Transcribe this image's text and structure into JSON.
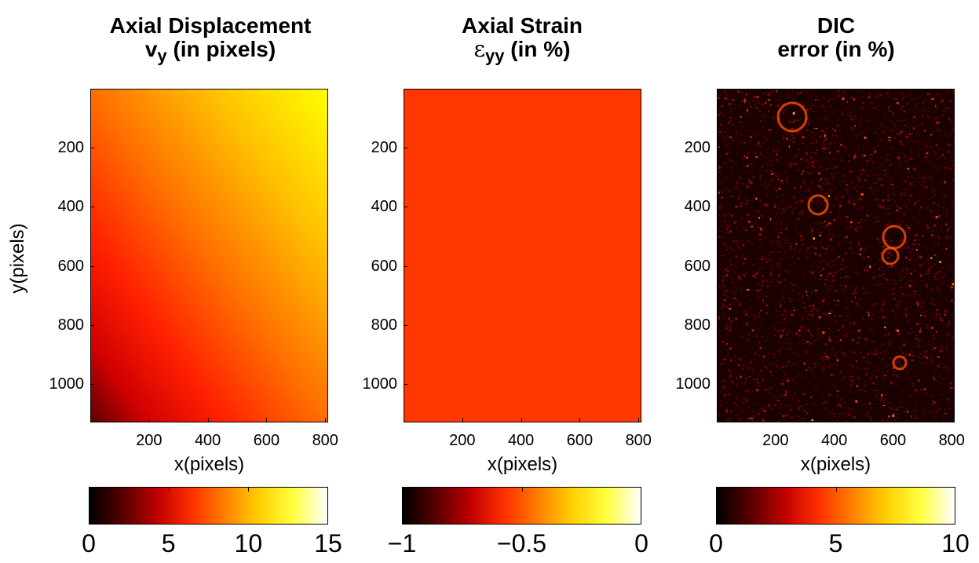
{
  "chart_data": [
    {
      "type": "heatmap",
      "title_line1": "Axial Displacement",
      "title_sym": "v",
      "title_sub": "y",
      "title_rest": " (in pixels)",
      "xlabel": "x(pixels)",
      "ylabel": "y(pixels)",
      "xticks": [
        "200",
        "400",
        "600",
        "800"
      ],
      "yticks": [
        "200",
        "400",
        "600",
        "800",
        "1000"
      ],
      "xlim": [
        0,
        810
      ],
      "ylim": [
        0,
        1130
      ],
      "colormap": "hot",
      "clim": [
        0,
        15
      ],
      "colorbar_ticks": [
        "0",
        "5",
        "10",
        "15"
      ],
      "field": "linear gradient: ~12.5 at top-right, ~1 at bottom-left"
    },
    {
      "type": "heatmap",
      "title_line1": "Axial Strain",
      "title_sym": "ε",
      "title_sub": "yy",
      "title_rest": " (in %)",
      "xlabel": "x(pixels)",
      "xticks": [
        "200",
        "400",
        "600",
        "800"
      ],
      "yticks": [
        "200",
        "400",
        "600",
        "800",
        "1000"
      ],
      "xlim": [
        0,
        810
      ],
      "ylim": [
        0,
        1130
      ],
      "colormap": "hot",
      "clim": [
        -1,
        0
      ],
      "colorbar_ticks": [
        "−1",
        "−0.5",
        "0"
      ],
      "uniform_value": -0.6
    },
    {
      "type": "heatmap",
      "title_line1": "DIC",
      "title_line2": "error (in %)",
      "xlabel": "x(pixels)",
      "xticks": [
        "200",
        "400",
        "600",
        "800"
      ],
      "yticks": [
        "200",
        "400",
        "600",
        "800",
        "1000"
      ],
      "xlim": [
        0,
        810
      ],
      "ylim": [
        0,
        1130
      ],
      "colormap": "hot",
      "clim": [
        0,
        10
      ],
      "colorbar_ticks": [
        "0",
        "5",
        "10"
      ],
      "field": "speckle noise, mostly 0-3 with bright spots"
    }
  ],
  "colors": {
    "strain_fill": "#ff3700"
  }
}
